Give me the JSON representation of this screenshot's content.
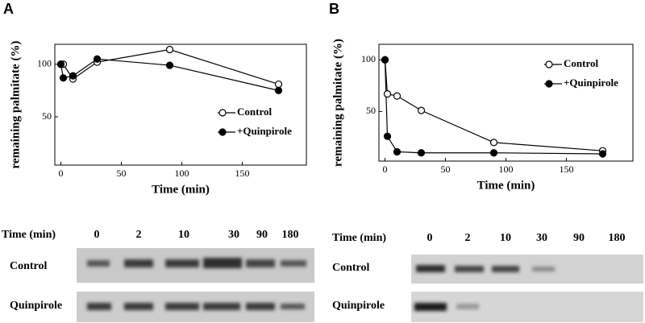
{
  "chart_data": [
    {
      "type": "line",
      "panel_label": "A",
      "xlabel": "Time (min)",
      "ylabel": "remaining palmitate (%)",
      "x": [
        0,
        2,
        10,
        30,
        90,
        180
      ],
      "series": [
        {
          "name": "Control",
          "color": "#ffffff",
          "values": [
            100,
            100,
            86,
            102,
            114,
            81
          ]
        },
        {
          "name": "+Quinpirole",
          "color": "#000000",
          "values": [
            100,
            87,
            89,
            105,
            99,
            75
          ]
        }
      ],
      "xlim": [
        -5,
        203
      ],
      "ylim": [
        4,
        119
      ],
      "xticks": [
        0,
        50,
        100,
        150
      ],
      "yticks": [
        50,
        100
      ],
      "legend": "center right"
    },
    {
      "type": "line",
      "panel_label": "B",
      "xlabel": "Time (min)",
      "ylabel": "remaining palmitate (%)",
      "x": [
        0,
        2,
        10,
        30,
        90,
        180
      ],
      "series": [
        {
          "name": "Control",
          "color": "#ffffff",
          "values": [
            100,
            67,
            65,
            51,
            20,
            12
          ]
        },
        {
          "name": "+Quinpirole",
          "color": "#000000",
          "values": [
            100,
            26,
            11,
            10,
            10,
            9
          ]
        }
      ],
      "xlim": [
        -5,
        205
      ],
      "ylim": [
        2,
        115
      ],
      "xticks": [
        0,
        50,
        100,
        150
      ],
      "yticks": [
        50,
        100
      ],
      "legend": "upper right"
    }
  ],
  "blots": [
    {
      "time_label": "Time (min)",
      "times": [
        0,
        2,
        10,
        30,
        90,
        180
      ],
      "rows": [
        "Control",
        "Quinpirole"
      ]
    },
    {
      "time_label": "Time (min)",
      "times": [
        0,
        2,
        10,
        30,
        90,
        180
      ],
      "rows": [
        "Control",
        "Quinpirole"
      ]
    }
  ]
}
